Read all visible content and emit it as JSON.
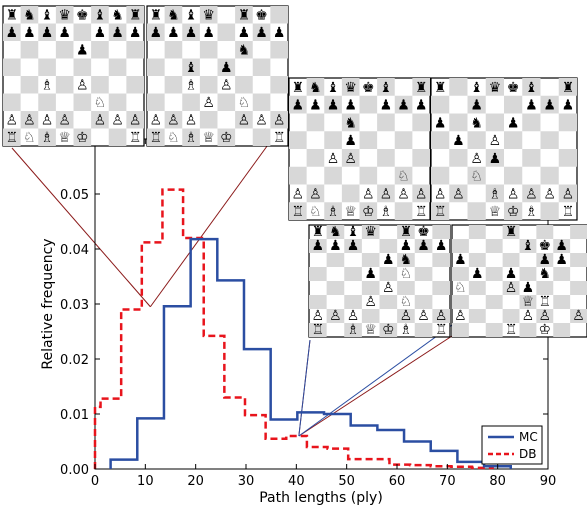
{
  "chart_data": {
    "type": "step-histogram",
    "xlabel": "Path lengths (ply)",
    "ylabel": "Relative frequency",
    "xlim": [
      0,
      90
    ],
    "ylim": [
      0,
      0.06
    ],
    "xticks": [
      "0",
      "10",
      "20",
      "30",
      "40",
      "50",
      "60",
      "70",
      "80",
      "90"
    ],
    "yticks": [
      "0.00",
      "0.01",
      "0.02",
      "0.03",
      "0.04",
      "0.05"
    ],
    "legend_position": "lower-right",
    "series": [
      {
        "name": "MC",
        "color": "#2b4ea2",
        "style": "solid",
        "bin_edges": [
          3.1,
          8.4,
          13.7,
          19.0,
          24.3,
          29.6,
          34.9,
          40.2,
          45.5,
          50.8,
          56.1,
          61.4,
          66.7,
          72.0,
          77.3,
          82.6
        ],
        "values": [
          0.0017,
          0.0092,
          0.0296,
          0.0418,
          0.0343,
          0.0218,
          0.009,
          0.0103,
          0.01,
          0.0079,
          0.0071,
          0.005,
          0.0033,
          0.0013,
          0.0005
        ]
      },
      {
        "name": "DB",
        "color": "#e8141c",
        "style": "dashed",
        "bin_edges": [
          0,
          1.1,
          5.2,
          9.3,
          13.4,
          17.5,
          21.6,
          25.7,
          29.8,
          33.9,
          38.0,
          42.1,
          46.2,
          50.3,
          54.4,
          58.5,
          62.6,
          66.7,
          70.8,
          74.9,
          79.0
        ],
        "values": [
          0.0113,
          0.0128,
          0.029,
          0.0412,
          0.0508,
          0.042,
          0.0242,
          0.013,
          0.0098,
          0.0055,
          0.006,
          0.004,
          0.0037,
          0.0018,
          0.0018,
          0.0008,
          0.0007,
          0.0005,
          0.0004,
          0.0002
        ]
      }
    ],
    "callouts": [
      {
        "x": 11,
        "y": 0.0295,
        "color": "#8b1a1a"
      },
      {
        "x": 40.5,
        "y": 0.006,
        "color": "#8b1a1a"
      },
      {
        "x": 40.5,
        "y": 0.006,
        "color": "#2b4ea2"
      }
    ]
  },
  "boards": [
    {
      "rows": [
        "rnbqkbnr",
        "pppp.ppp",
        "....p...",
        "........",
        "..B.P...",
        ".....N..",
        "PPPP.PPP",
        "RNBQK..R"
      ]
    },
    {
      "rows": [
        "rnbq.rk.",
        "pppp.ppp",
        ".....n..",
        "..b.p...",
        "..B.P...",
        "...P.N..",
        "PPP..PPP",
        "RNBQK..R"
      ]
    },
    {
      "rows": [
        "rnbqkb.r",
        "pppp.ppp",
        "...n....",
        "...p....",
        "..PP....",
        "......N.",
        "PP..PPPP",
        "RNBQKB.R"
      ]
    },
    {
      "rows": [
        "r.bqkb.r",
        "..p..ppp",
        "p.n.p...",
        ".p.P....",
        "..Pp....",
        "..N.....",
        "PP.BPPPP",
        "R..QKB.R"
      ]
    },
    {
      "rows": [
        "rnbq.rk.",
        "ppp..ppp",
        "....pn..",
        "...p.N..",
        "....P...",
        "...P.N..",
        "PPP..PPP",
        "R.BQKB.R"
      ]
    },
    {
      "rows": [
        "...r....",
        "....bkp.",
        "p....pp.",
        ".p.p.n..",
        "N..Pp...",
        "....QR..",
        "P...PP.P",
        "...R.K.."
      ]
    }
  ]
}
